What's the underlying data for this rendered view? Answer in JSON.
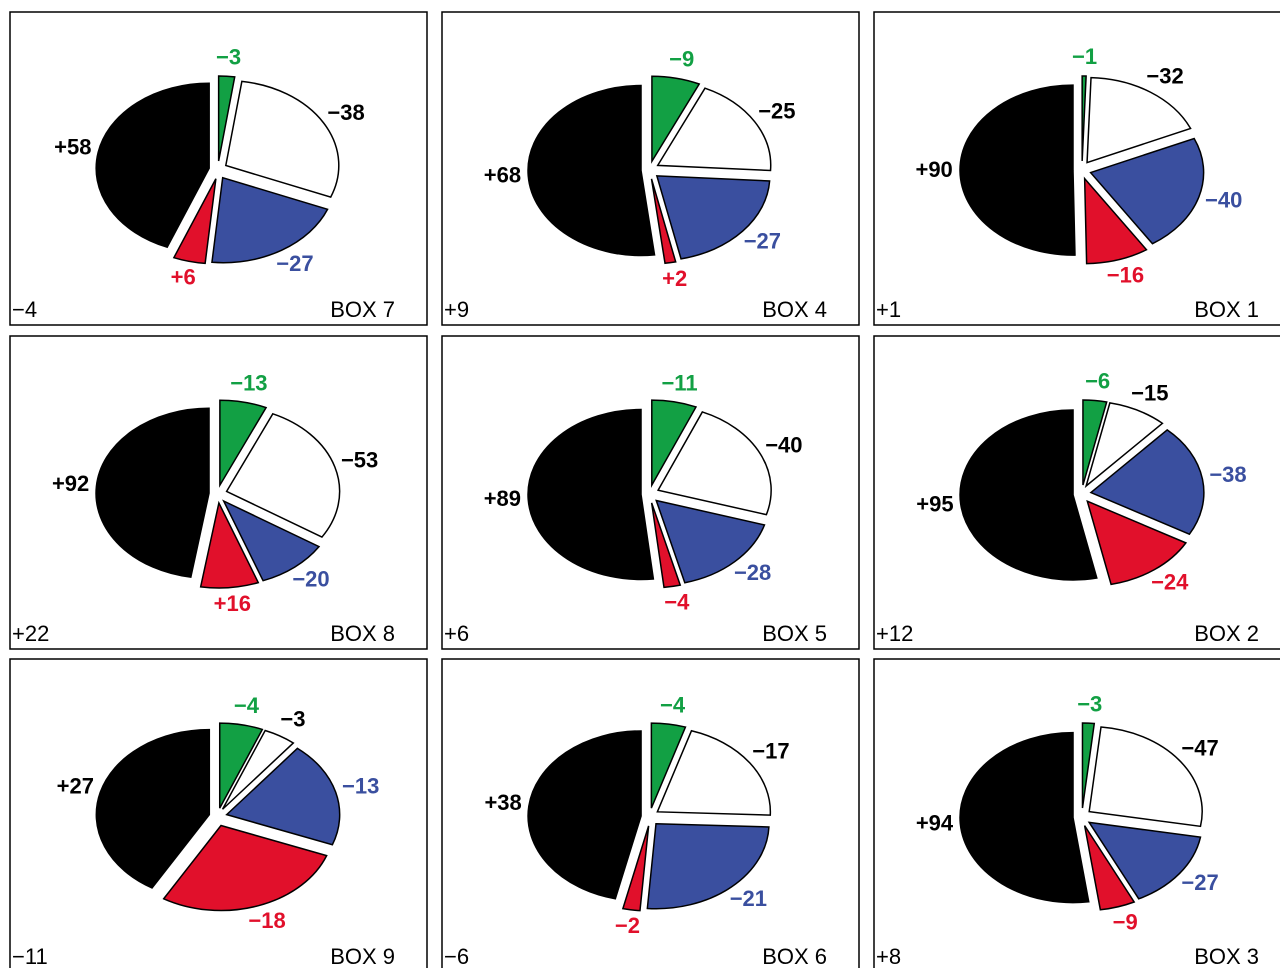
{
  "chart_data": [
    {
      "type": "pie",
      "title": "BOX 7",
      "net": {
        "value": -4,
        "label": "−4"
      },
      "values": [
        -3,
        -38,
        -27,
        6,
        58
      ],
      "value_labels": [
        "−3",
        "−38",
        "−27",
        "+6",
        "+58"
      ],
      "colors": [
        "#12a044",
        "#ffffff",
        "#3a4f9f",
        "#e1102b",
        "#000000"
      ],
      "label_colors": [
        "#12a044",
        "#000000",
        "#3a4f9f",
        "#e1102b",
        "#000000"
      ]
    },
    {
      "type": "pie",
      "title": "BOX 4",
      "net": {
        "value": 9,
        "label": "+9"
      },
      "values": [
        -9,
        -25,
        -27,
        2,
        68
      ],
      "value_labels": [
        "−9",
        "−25",
        "−27",
        "+2",
        "+68"
      ],
      "colors": [
        "#12a044",
        "#ffffff",
        "#3a4f9f",
        "#e1102b",
        "#000000"
      ],
      "label_colors": [
        "#12a044",
        "#000000",
        "#3a4f9f",
        "#e1102b",
        "#000000"
      ]
    },
    {
      "type": "pie",
      "title": "BOX 1",
      "net": {
        "value": 1,
        "label": "+1"
      },
      "values": [
        -1,
        -32,
        -40,
        -16,
        90
      ],
      "value_labels": [
        "−1",
        "−32",
        "−40",
        "−16",
        "+90"
      ],
      "colors": [
        "#12a044",
        "#ffffff",
        "#3a4f9f",
        "#e1102b",
        "#000000"
      ],
      "label_colors": [
        "#12a044",
        "#000000",
        "#3a4f9f",
        "#e1102b",
        "#000000"
      ]
    },
    {
      "type": "pie",
      "title": "BOX 8",
      "net": {
        "value": 22,
        "label": "+22"
      },
      "values": [
        -13,
        -53,
        -20,
        16,
        92
      ],
      "value_labels": [
        "−13",
        "−53",
        "−20",
        "+16",
        "+92"
      ],
      "colors": [
        "#12a044",
        "#ffffff",
        "#3a4f9f",
        "#e1102b",
        "#000000"
      ],
      "label_colors": [
        "#12a044",
        "#000000",
        "#3a4f9f",
        "#e1102b",
        "#000000"
      ]
    },
    {
      "type": "pie",
      "title": "BOX 5",
      "net": {
        "value": 6,
        "label": "+6"
      },
      "values": [
        -11,
        -40,
        -28,
        -4,
        89
      ],
      "value_labels": [
        "−11",
        "−40",
        "−28",
        "−4",
        "+89"
      ],
      "colors": [
        "#12a044",
        "#ffffff",
        "#3a4f9f",
        "#e1102b",
        "#000000"
      ],
      "label_colors": [
        "#12a044",
        "#000000",
        "#3a4f9f",
        "#e1102b",
        "#000000"
      ]
    },
    {
      "type": "pie",
      "title": "BOX 2",
      "net": {
        "value": 12,
        "label": "+12"
      },
      "values": [
        -6,
        -15,
        -38,
        -24,
        95
      ],
      "value_labels": [
        "−6",
        "−15",
        "−38",
        "−24",
        "+95"
      ],
      "colors": [
        "#12a044",
        "#ffffff",
        "#3a4f9f",
        "#e1102b",
        "#000000"
      ],
      "label_colors": [
        "#12a044",
        "#000000",
        "#3a4f9f",
        "#e1102b",
        "#000000"
      ]
    },
    {
      "type": "pie",
      "title": "BOX 9",
      "net": {
        "value": -11,
        "label": "−11"
      },
      "values": [
        -4,
        -3,
        -13,
        -18,
        27
      ],
      "value_labels": [
        "−4",
        "−3",
        "−13",
        "−18",
        "+27"
      ],
      "colors": [
        "#12a044",
        "#ffffff",
        "#3a4f9f",
        "#e1102b",
        "#000000"
      ],
      "label_colors": [
        "#12a044",
        "#000000",
        "#3a4f9f",
        "#e1102b",
        "#000000"
      ]
    },
    {
      "type": "pie",
      "title": "BOX 6",
      "net": {
        "value": -6,
        "label": "−6"
      },
      "values": [
        -4,
        -17,
        -21,
        -2,
        38
      ],
      "value_labels": [
        "−4",
        "−17",
        "−21",
        "−2",
        "+38"
      ],
      "colors": [
        "#12a044",
        "#ffffff",
        "#3a4f9f",
        "#e1102b",
        "#000000"
      ],
      "label_colors": [
        "#12a044",
        "#000000",
        "#3a4f9f",
        "#e1102b",
        "#000000"
      ]
    },
    {
      "type": "pie",
      "title": "BOX 3",
      "net": {
        "value": 8,
        "label": "+8"
      },
      "values": [
        -3,
        -47,
        -27,
        -9,
        94
      ],
      "value_labels": [
        "−3",
        "−47",
        "−27",
        "−9",
        "+94"
      ],
      "colors": [
        "#12a044",
        "#ffffff",
        "#3a4f9f",
        "#e1102b",
        "#000000"
      ],
      "label_colors": [
        "#12a044",
        "#000000",
        "#3a4f9f",
        "#e1102b",
        "#000000"
      ]
    }
  ]
}
